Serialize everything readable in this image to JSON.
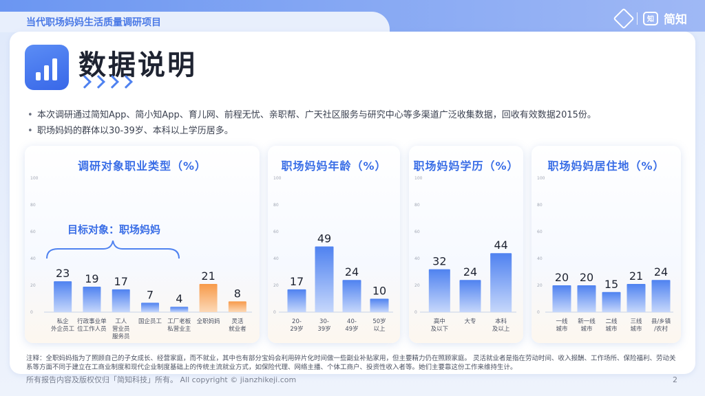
{
  "header": {
    "title": "当代职场妈妈生活质量调研项目",
    "brand_name": "简知",
    "brand_logo_text": "知"
  },
  "page_title": "数据说明",
  "notes": [
    "本次调研通过简知App、简小知App、育儿网、前程无忧、亲职帮、广天社区服务与研究中心等多渠道广泛收集数据，回收有效数据2015份。",
    "职场妈妈的群体以30-39岁、本科以上学历居多。"
  ],
  "annotation": "目标对象：职场妈妈",
  "footnote": "注释：全职妈妈指为了照顾自己的子女成长、经营家庭，而不就业，其中也有部分宝妈会利用碎片化时间做一些副业补贴家用，但主要精力仍在照顾家庭。 灵活就业者是指在劳动时间、收入报酬、工作场所、保险福利、劳动关系等方面不同于建立在工商业制度和现代企业制度基础上的传统主流就业方式，如保险代理、网络主播、个体工商户、投资性收入者等。她们主要靠这份工作来维持生计。",
  "copyright": "所有报告内容及版权仅归「简知科技」所有。  All copyright © jianzhikeji.com",
  "page_number": "2",
  "colors": {
    "accent": "#3a6ee6",
    "bar_blue": "#4f82f0",
    "bar_orange": "#f79a4a"
  },
  "chart_data": [
    {
      "type": "bar",
      "title": "调研对象职业类型（%）",
      "categories": [
        "私企\n外企员工",
        "行政事业单\n位工作人员",
        "工人\n营业员\n服务员",
        "国企员工",
        "工厂老板\n私营业主",
        "全职妈妈",
        "灵活\n就业者"
      ],
      "values": [
        23,
        19,
        17,
        7,
        4,
        21,
        8
      ],
      "highlight": [
        false,
        false,
        false,
        false,
        false,
        true,
        true
      ],
      "yticks": [
        0,
        20,
        40,
        60,
        80,
        100
      ],
      "ylim": [
        0,
        100
      ]
    },
    {
      "type": "bar",
      "title": "职场妈妈年龄（%）",
      "categories": [
        "20-\n29岁",
        "30-\n39岁",
        "40-\n49岁",
        "50岁\n以上"
      ],
      "values": [
        17,
        49,
        24,
        10
      ],
      "yticks": [
        0,
        20,
        40,
        60,
        80,
        100
      ],
      "ylim": [
        0,
        100
      ]
    },
    {
      "type": "bar",
      "title": "职场妈妈学历（%）",
      "categories": [
        "高中\n及以下",
        "大专",
        "本科\n及以上"
      ],
      "values": [
        32,
        24,
        44
      ],
      "yticks": [
        0,
        20,
        40,
        60,
        80,
        100
      ],
      "ylim": [
        0,
        100
      ]
    },
    {
      "type": "bar",
      "title": "职场妈妈居住地（%）",
      "categories": [
        "一线\n城市",
        "新一线\n城市",
        "二线\n城市",
        "三线\n城市",
        "县/乡镇\n/农村"
      ],
      "values": [
        20,
        20,
        15,
        21,
        24
      ],
      "yticks": [
        0,
        20,
        40,
        60,
        80,
        100
      ],
      "ylim": [
        0,
        100
      ]
    }
  ]
}
